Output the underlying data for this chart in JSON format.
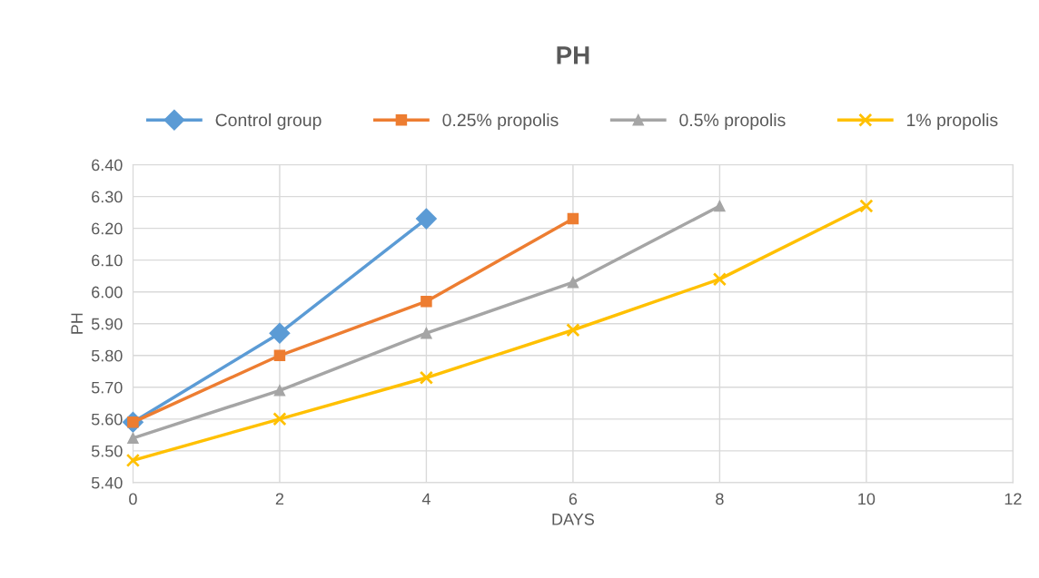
{
  "chart_data": {
    "type": "line",
    "title": "PH",
    "xlabel": "DAYS",
    "ylabel": "PH",
    "xlim": [
      0,
      12
    ],
    "xticks": [
      0,
      2,
      4,
      6,
      8,
      10,
      12
    ],
    "ylim": [
      5.4,
      6.4
    ],
    "yticks": [
      {
        "value": 5.4,
        "label": "5.40"
      },
      {
        "value": 5.5,
        "label": "5.50"
      },
      {
        "value": 5.6,
        "label": "5.60"
      },
      {
        "value": 5.7,
        "label": "5.70"
      },
      {
        "value": 5.8,
        "label": "5.80"
      },
      {
        "value": 5.9,
        "label": "5.90"
      },
      {
        "value": 6.0,
        "label": "6.00"
      },
      {
        "value": 6.1,
        "label": "6.10"
      },
      {
        "value": 6.2,
        "label": "6.20"
      },
      {
        "value": 6.3,
        "label": "6.30"
      },
      {
        "value": 6.4,
        "label": "6.40"
      }
    ],
    "grid": true,
    "legend": "top",
    "line_style": "solid",
    "series": [
      {
        "name": "Control group",
        "color": "#5b9bd5",
        "marker": "diamond",
        "x": [
          0,
          2,
          4
        ],
        "values": [
          5.59,
          5.87,
          6.23
        ]
      },
      {
        "name": "0.25% propolis",
        "color": "#ed7d31",
        "marker": "square",
        "x": [
          0,
          2,
          4,
          6
        ],
        "values": [
          5.59,
          5.8,
          5.97,
          6.23
        ]
      },
      {
        "name": "0.5% propolis",
        "color": "#a5a5a5",
        "marker": "triangle",
        "x": [
          0,
          2,
          4,
          6,
          8
        ],
        "values": [
          5.54,
          5.69,
          5.87,
          6.03,
          6.27
        ]
      },
      {
        "name": "1% propolis",
        "color": "#ffc000",
        "marker": "cross",
        "x": [
          0,
          2,
          4,
          6,
          8,
          10
        ],
        "values": [
          5.47,
          5.6,
          5.73,
          5.88,
          6.04,
          6.27
        ]
      }
    ]
  }
}
